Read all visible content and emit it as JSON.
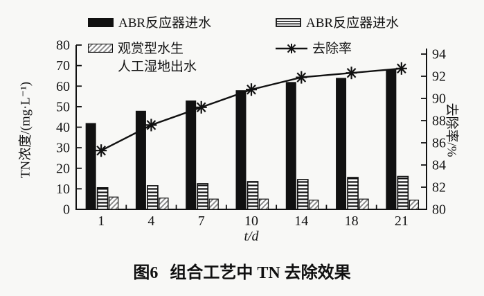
{
  "figure": {
    "caption_prefix": "图6",
    "caption_text": "组合工艺中 TN 去除效果"
  },
  "chart_data": {
    "type": "bar",
    "combo": "grouped bars (left axis) + line with star markers (right axis)",
    "title": "图6 组合工艺中 TN 去除效果",
    "grid": false,
    "legend_position": "top",
    "categories": [
      "1",
      "4",
      "7",
      "10",
      "14",
      "18",
      "21"
    ],
    "xlabel": "t/d",
    "left_axis": {
      "label": "TN浓度/(mg·L⁻¹)",
      "min": 0,
      "max": 80,
      "step": 10,
      "ticks": [
        0,
        10,
        20,
        30,
        40,
        50,
        60,
        70,
        80
      ]
    },
    "right_axis": {
      "label": "去除率/%",
      "min": 80,
      "max": 94,
      "step": 2,
      "ticks": [
        80,
        82,
        84,
        86,
        88,
        90,
        92,
        94
      ]
    },
    "legend": [
      {
        "label": "ABR反应器进水",
        "swatch": "solid-black-bar"
      },
      {
        "label": "ABR反应器进水",
        "swatch": "horizontal-stripes-bar"
      },
      {
        "label_line1": "观赏型水生",
        "label_line2": "人工湿地出水",
        "swatch": "diagonal-hatch-bar"
      },
      {
        "label": "去除率",
        "swatch": "line-with-star-marker"
      }
    ],
    "series": [
      {
        "name": "ABR反应器进水",
        "type": "bar",
        "pattern": "solid-black",
        "axis": "left",
        "values": [
          42,
          48,
          53,
          58,
          62,
          64,
          68
        ]
      },
      {
        "name": "ABR反应器进水",
        "type": "bar",
        "pattern": "horizontal-stripes",
        "axis": "left",
        "values": [
          10.5,
          11.5,
          12.5,
          13.5,
          14.5,
          15.5,
          16
        ]
      },
      {
        "name": "观赏型水生人工湿地出水",
        "type": "bar",
        "pattern": "diagonal-hatch",
        "axis": "left",
        "values": [
          6,
          5.5,
          5,
          5,
          4.5,
          5,
          4.5
        ]
      },
      {
        "name": "去除率",
        "type": "line",
        "marker": "star",
        "axis": "right",
        "values": [
          85.3,
          87.6,
          89.2,
          90.8,
          91.9,
          92.3,
          92.7
        ]
      }
    ],
    "colors": {
      "ink": "#111111",
      "hatch_gray": "#8a8a8a",
      "background": "#f8f8f6"
    }
  }
}
